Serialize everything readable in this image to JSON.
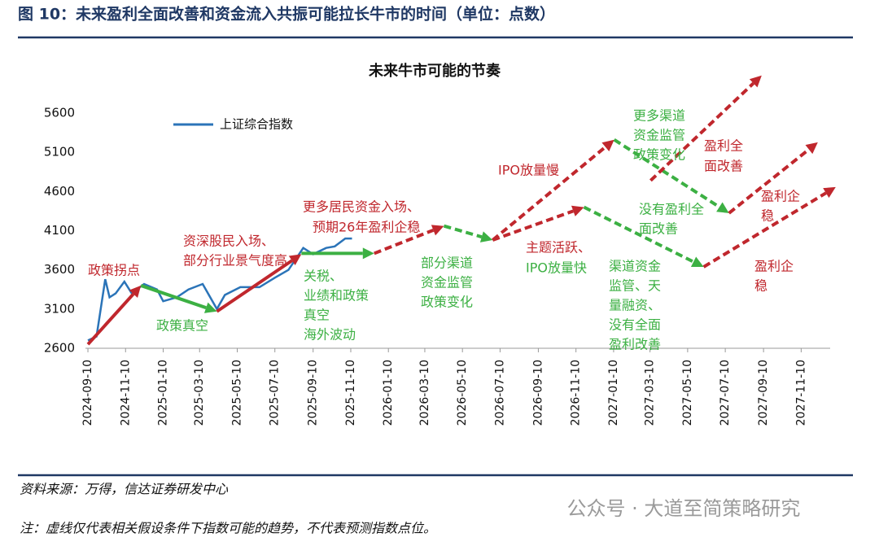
{
  "header": {
    "title": "图 10：未来盈利全面改善和资金流入共振可能拉长牛市的时间（单位：点数）"
  },
  "chart_data": {
    "type": "line",
    "title": "未来牛市可能的节奏",
    "x": [
      "2024-09-10",
      "2024-09-24",
      "2024-10-08",
      "2024-10-15",
      "2024-10-25",
      "2024-11-08",
      "2024-11-20",
      "2024-12-10",
      "2024-12-31",
      "2025-01-10",
      "2025-02-01",
      "2025-02-20",
      "2025-03-15",
      "2025-04-07",
      "2025-04-20",
      "2025-05-15",
      "2025-06-15",
      "2025-07-10",
      "2025-08-01",
      "2025-08-25",
      "2025-09-10",
      "2025-10-01",
      "2025-10-15",
      "2025-11-01",
      "2025-11-12"
    ],
    "series": [
      {
        "name": "上证综合指数",
        "color": "#2b74b8",
        "values": [
          2700,
          2750,
          3480,
          3250,
          3300,
          3450,
          3300,
          3420,
          3350,
          3200,
          3250,
          3350,
          3420,
          3100,
          3280,
          3380,
          3380,
          3500,
          3600,
          3880,
          3800,
          3880,
          3900,
          4000,
          4000
        ]
      }
    ],
    "xlim": [
      "2024-09-06",
      "2027-12-27"
    ],
    "xticks": [
      "2024-09-10",
      "2024-11-10",
      "2025-01-10",
      "2025-03-10",
      "2025-05-10",
      "2025-07-10",
      "2025-09-10",
      "2025-11-10",
      "2026-01-10",
      "2026-03-10",
      "2026-05-10",
      "2026-07-10",
      "2026-09-10",
      "2026-11-10",
      "2027-01-10",
      "2027-03-10",
      "2027-05-10",
      "2027-07-10",
      "2027-09-10",
      "2027-11-10"
    ],
    "ylim": [
      2600,
      6100
    ],
    "yticks": [
      2600,
      3100,
      3600,
      4100,
      4600,
      5100,
      5600
    ],
    "grid": false,
    "legend": "upper left",
    "arrows": [
      {
        "from": [
          "2024-09-10",
          2650
        ],
        "to": [
          "2024-12-05",
          3400
        ],
        "color": "#c0272d",
        "dashed": false
      },
      {
        "from": [
          "2024-12-05",
          3400
        ],
        "to": [
          "2025-04-07",
          3070
        ],
        "color": "#3cb043",
        "dashed": false
      },
      {
        "from": [
          "2025-04-07",
          3070
        ],
        "to": [
          "2025-08-22",
          3800
        ],
        "color": "#c0272d",
        "dashed": false
      },
      {
        "from": [
          "2025-08-22",
          3810
        ],
        "to": [
          "2025-12-18",
          3810
        ],
        "color": "#3cb043",
        "dashed": false
      },
      {
        "from": [
          "2025-12-18",
          3810
        ],
        "to": [
          "2026-04-10",
          4160
        ],
        "color": "#c0272d",
        "dashed": true
      },
      {
        "from": [
          "2026-04-10",
          4160
        ],
        "to": [
          "2026-06-28",
          3980
        ],
        "color": "#3cb043",
        "dashed": true
      },
      {
        "from": [
          "2026-06-28",
          3980
        ],
        "to": [
          "2027-01-11",
          5260
        ],
        "color": "#c0272d",
        "dashed": true
      },
      {
        "from": [
          "2026-06-28",
          3980
        ],
        "to": [
          "2026-11-23",
          4400
        ],
        "color": "#c0272d",
        "dashed": true
      },
      {
        "from": [
          "2027-01-11",
          5260
        ],
        "to": [
          "2027-07-16",
          4324
        ],
        "color": "#3cb043",
        "dashed": true
      },
      {
        "from": [
          "2027-03-11",
          4740
        ],
        "to": [
          "2027-09-07",
          6080
        ],
        "color": "#c0272d",
        "dashed": true
      },
      {
        "from": [
          "2027-07-16",
          4324
        ],
        "to": [
          "2027-12-07",
          5227
        ],
        "color": "#c0272d",
        "dashed": true
      },
      {
        "from": [
          "2026-11-23",
          4400
        ],
        "to": [
          "2027-06-05",
          3638
        ],
        "color": "#3cb043",
        "dashed": true
      },
      {
        "from": [
          "2027-06-05",
          3638
        ],
        "to": [
          "2028-01-05",
          4656
        ],
        "color": "#c0272d",
        "dashed": true
      }
    ],
    "annotations": [
      {
        "lines": [
          "政策拐点"
        ],
        "color": "#c0272d"
      },
      {
        "lines": [
          "政策真空"
        ],
        "color": "#3cb043"
      },
      {
        "lines": [
          "资深股民入场、",
          "部分行业景气度高"
        ],
        "color": "#c0272d"
      },
      {
        "lines": [
          "更多居民资金入场、",
          "预期26年盈利企稳"
        ],
        "color": "#c0272d"
      },
      {
        "lines": [
          "关税、",
          "业绩和政策",
          "真空",
          "海外波动"
        ],
        "color": "#3cb043"
      },
      {
        "lines": [
          "部分渠道",
          "资金监管",
          "政策变化"
        ],
        "color": "#3cb043"
      },
      {
        "lines": [
          "IPO放量慢"
        ],
        "color": "#c0272d"
      },
      {
        "lines": [
          "主题活跃、"
        ],
        "color": "#c0272d"
      },
      {
        "lines": [
          "IPO放量快"
        ],
        "color": "#3cb043"
      },
      {
        "lines": [
          "更多渠道",
          "资金监管",
          "政策变化"
        ],
        "color": "#3cb043"
      },
      {
        "lines": [
          "盈利全",
          "面改善"
        ],
        "color": "#c0272d"
      },
      {
        "lines": [
          "没有盈利全",
          "面改善"
        ],
        "color": "#3cb043"
      },
      {
        "lines": [
          "盈利企",
          "稳"
        ],
        "color": "#c0272d"
      },
      {
        "lines": [
          "渠道资金",
          "监管、天",
          "量融资、",
          "没有全面",
          "盈利改善"
        ],
        "color": "#3cb043"
      },
      {
        "lines": [
          "盈利企",
          "稳"
        ],
        "color": "#c0272d"
      }
    ]
  },
  "footer": {
    "source": "资料来源：万得，信达证券研发中心",
    "note": "注：虚线仅代表相关假设条件下指数可能的趋势，不代表预测指数点位。",
    "watermark": "公众号 · 大道至简策略研究"
  }
}
